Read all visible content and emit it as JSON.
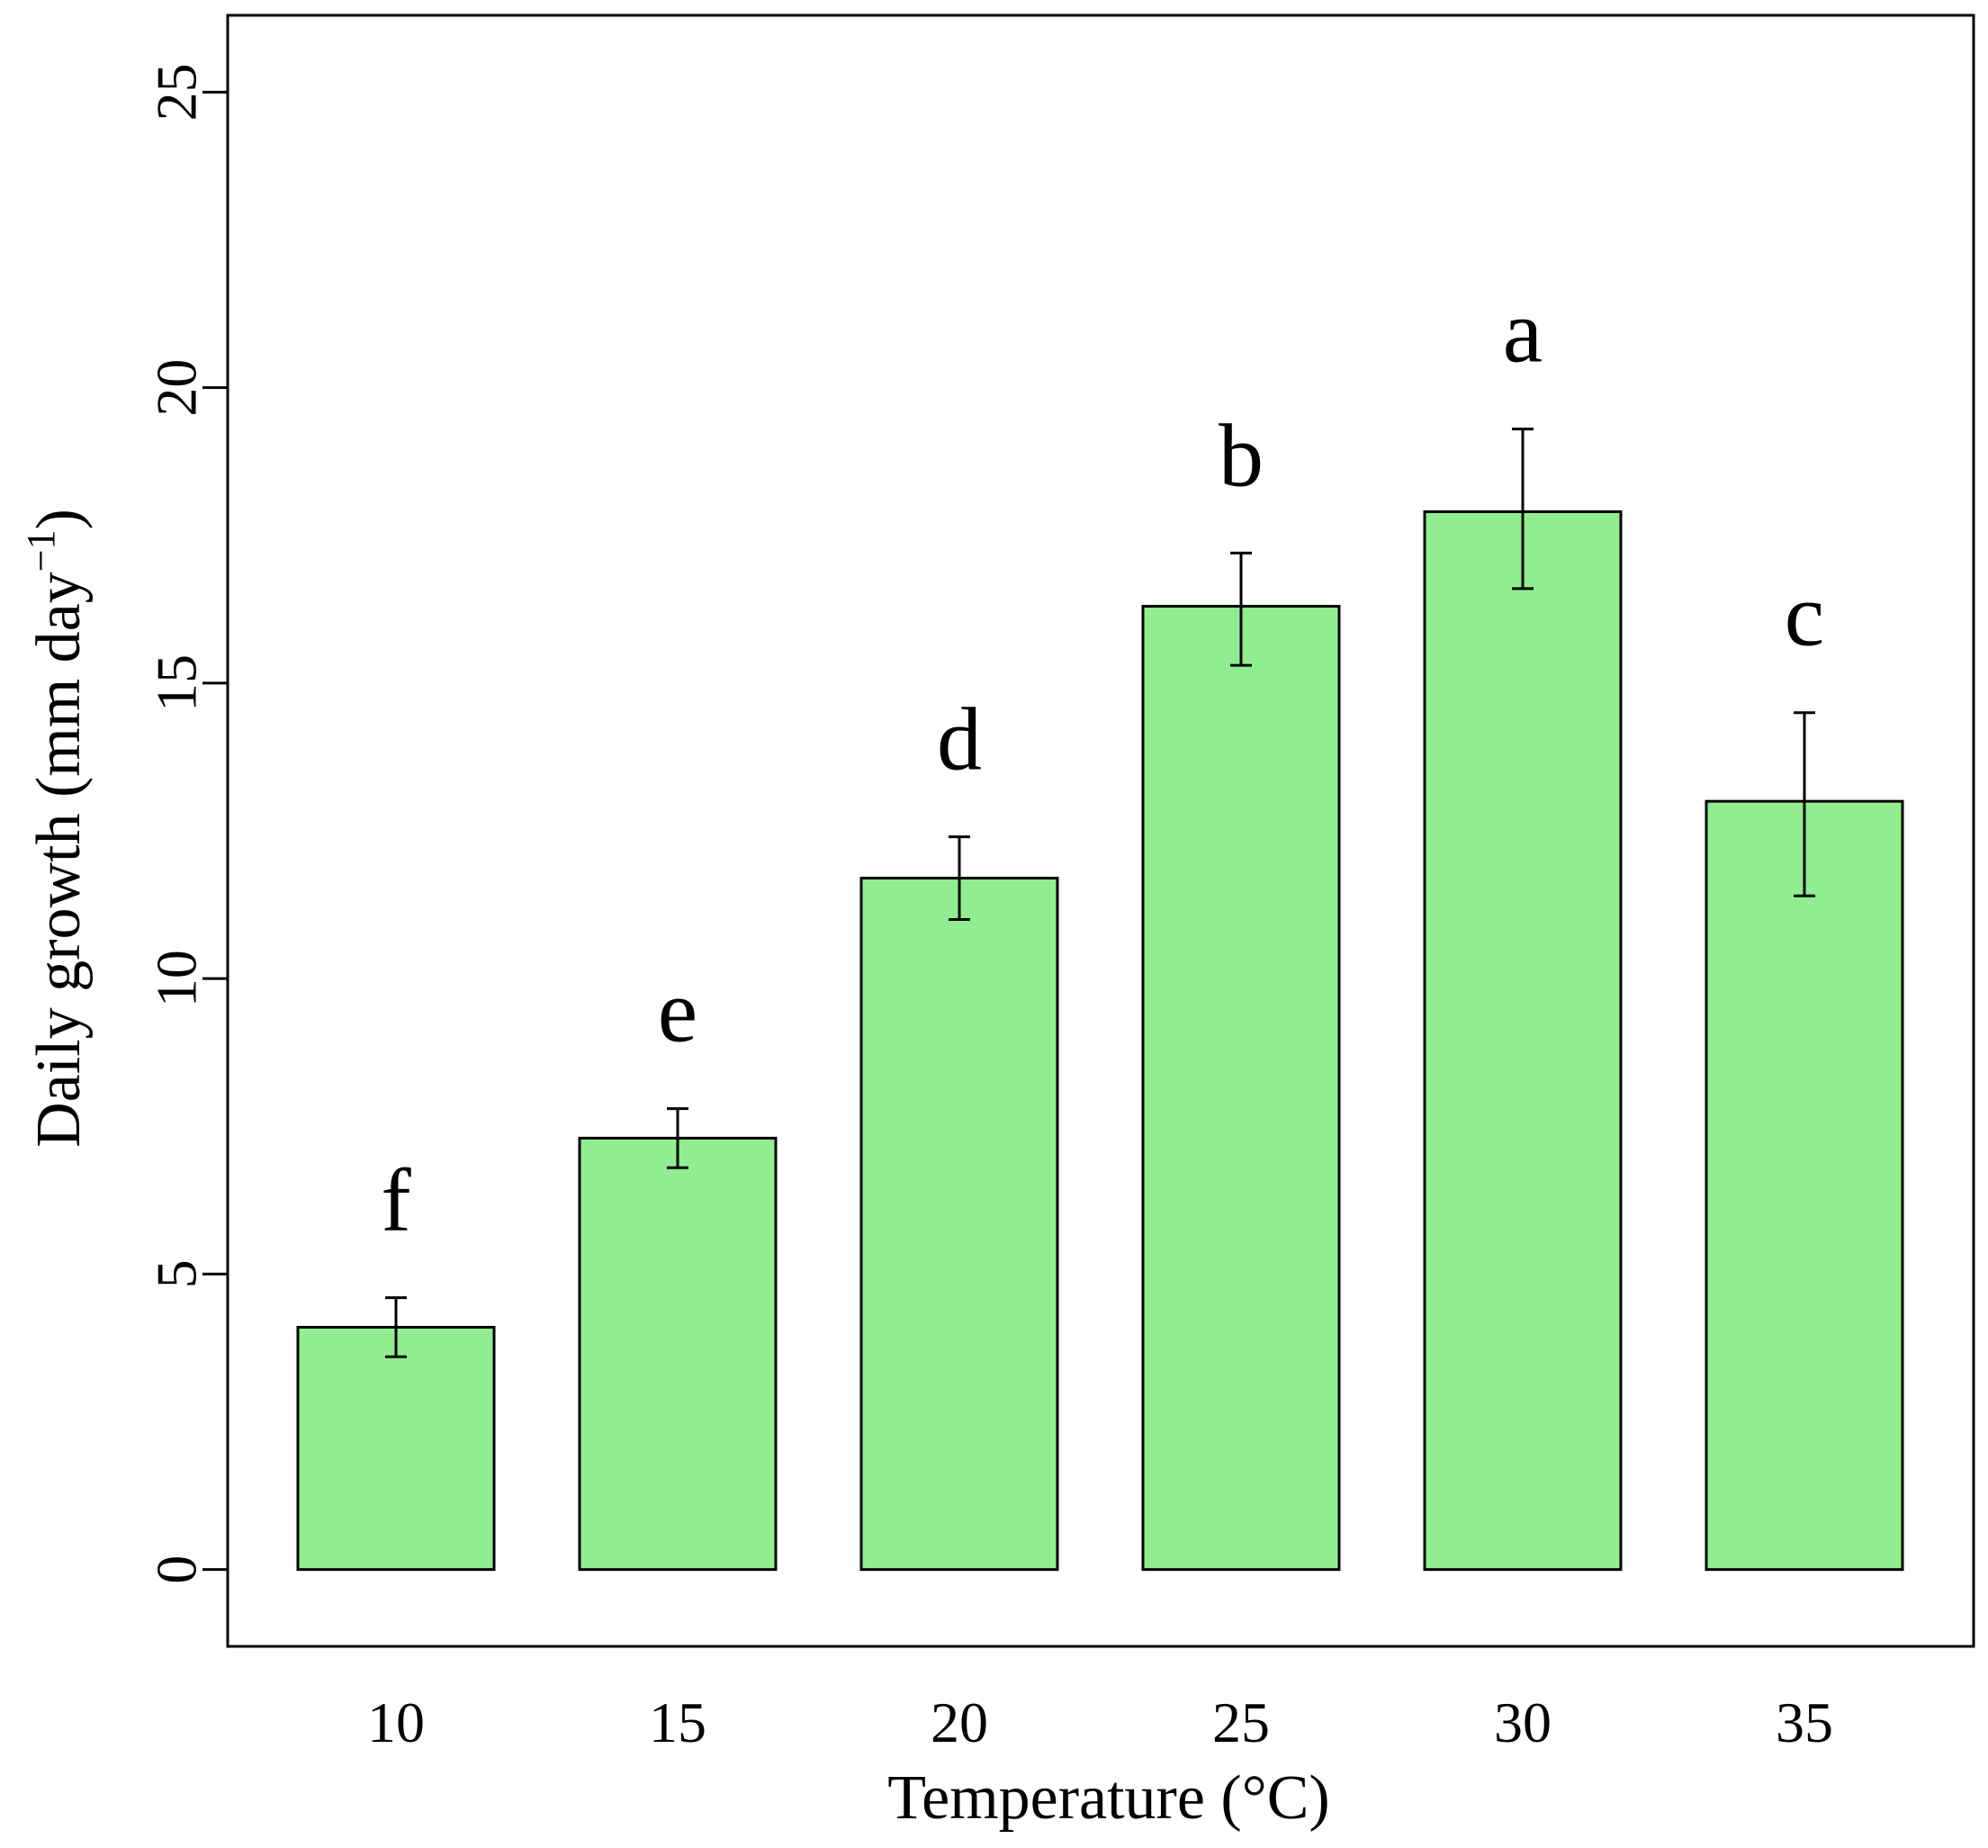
{
  "chart_data": {
    "type": "bar",
    "title": "",
    "categories": [
      "10",
      "15",
      "20",
      "25",
      "30",
      "35"
    ],
    "values": [
      4.1,
      7.3,
      11.7,
      16.3,
      17.9,
      13.0
    ],
    "error_upper": [
      4.6,
      7.8,
      12.4,
      17.2,
      19.3,
      14.5
    ],
    "error_lower": [
      3.6,
      6.8,
      11.0,
      15.3,
      16.6,
      11.4
    ],
    "significance_letters": [
      "f",
      "e",
      "d",
      "b",
      "a",
      "c"
    ],
    "xlabel": "Temperature (°C)",
    "ylabel_main": "Daily growth (mm day",
    "ylabel_superscript": "−1",
    "ylabel_close": ")",
    "yticks": [
      0,
      5,
      10,
      15,
      20,
      25
    ],
    "ylim": [
      -1.3,
      26.3
    ],
    "bar_color": "#90ee90",
    "grid": false,
    "legend": "none"
  }
}
